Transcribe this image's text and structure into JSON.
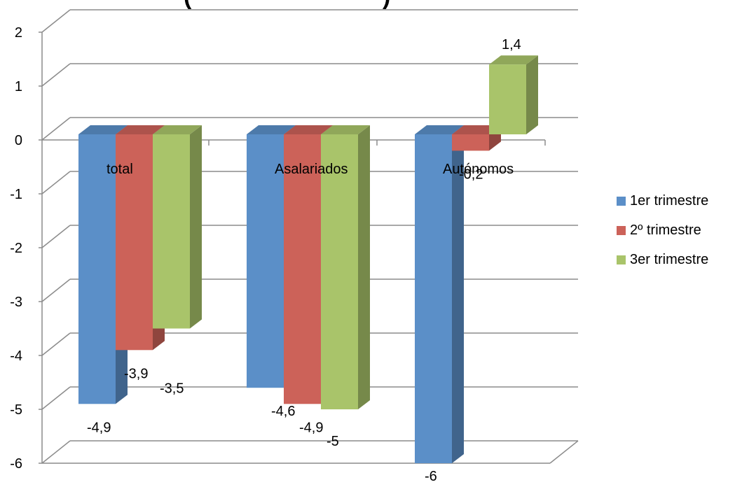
{
  "chart_data": {
    "type": "bar",
    "title_fragment_left": "(",
    "title_fragment_right": ")",
    "categories": [
      "total",
      "Asalariados",
      "Autónomos"
    ],
    "series": [
      {
        "name": "1er trimestre",
        "values": [
          -4.9,
          -4.6,
          -6
        ],
        "labels": [
          "-4,9",
          "-4,6",
          "-6"
        ],
        "color": "#5B8FC8"
      },
      {
        "name": "2º trimestre",
        "values": [
          -3.9,
          -4.9,
          -0.2
        ],
        "labels": [
          "-3,9",
          "-4,9",
          "-0,2"
        ],
        "color": "#CC6259"
      },
      {
        "name": "3er trimestre",
        "values": [
          -3.5,
          -5,
          1.4
        ],
        "labels": [
          "-3,5",
          "-5",
          "1,4"
        ],
        "color": "#A9C46A"
      }
    ],
    "y_ticks": [
      "2",
      "1",
      "0",
      "-1",
      "-2",
      "-3",
      "-4",
      "-5",
      "-6"
    ],
    "ylim": [
      -6,
      2
    ],
    "grid": true,
    "legend_position": "right"
  }
}
